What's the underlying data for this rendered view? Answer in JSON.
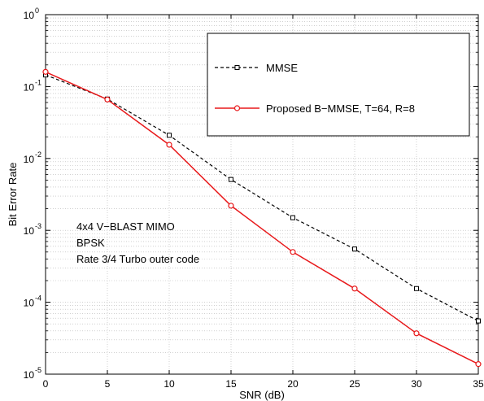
{
  "chart_data": {
    "type": "line",
    "title": "",
    "xlabel": "SNR (dB)",
    "ylabel": "Bit Error Rate",
    "xlim": [
      0,
      35
    ],
    "ylim": [
      1e-05,
      1
    ],
    "yscale": "log",
    "grid": true,
    "legend_position": "top-right",
    "x_ticks": [
      "0",
      "5",
      "10",
      "15",
      "20",
      "25",
      "30",
      "35"
    ],
    "y_tick_exponents": [
      "-5",
      "-4",
      "-3",
      "-2",
      "-1",
      "0"
    ],
    "y_tick_base": "10",
    "x": [
      0,
      5,
      10,
      15,
      20,
      25,
      30,
      35
    ],
    "series": [
      {
        "name": "MMSE",
        "values": [
          0.145,
          0.067,
          0.021,
          0.0051,
          0.0015,
          0.00055,
          0.000155,
          5.5e-05
        ],
        "color": "#000000",
        "line": "dashed",
        "marker": "square"
      },
      {
        "name": "Proposed B−MMSE, T=64, R=8",
        "values": [
          0.16,
          0.066,
          0.0155,
          0.0022,
          0.0005,
          0.000155,
          3.7e-05,
          1.38e-05
        ],
        "color": "#e8191b",
        "line": "solid",
        "marker": "circle"
      }
    ],
    "annotations": [
      "4x4 V−BLAST MIMO",
      "BPSK",
      "Rate 3/4 Turbo outer code"
    ]
  }
}
